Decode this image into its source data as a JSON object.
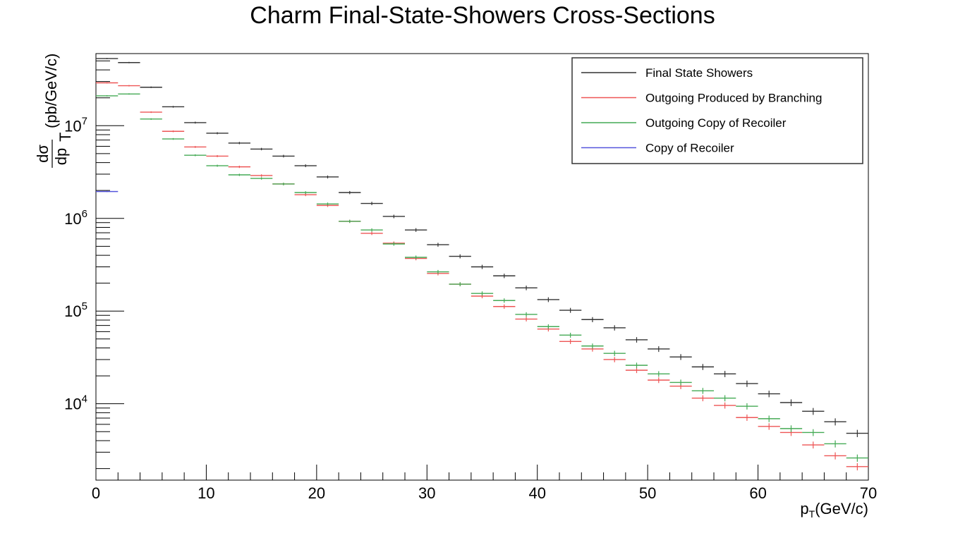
{
  "chart_data": {
    "type": "histogram",
    "title": "Charm Final-State-Showers Cross-Sections",
    "xlabel": "p_T(GeV/c)",
    "ylabel": "dσ/dp_T (pb/GeV/c)",
    "xlim": [
      0,
      70
    ],
    "ylim": [
      1500,
      60000000
    ],
    "yscale": "log",
    "bin_width": 2,
    "bin_edges_start": 0,
    "x_tick_labels": [
      "0",
      "10",
      "20",
      "30",
      "40",
      "50",
      "60",
      "70"
    ],
    "y_tick_labels": [
      {
        "value": 10000,
        "label": "10",
        "exp": "4"
      },
      {
        "value": 100000,
        "label": "10",
        "exp": "5"
      },
      {
        "value": 1000000,
        "label": "10",
        "exp": "6"
      },
      {
        "value": 10000000,
        "label": "10",
        "exp": "7"
      }
    ],
    "legend_position": "top-right",
    "series": [
      {
        "name": "Final State Showers",
        "color": "#333333",
        "values": [
          53000000,
          48000000,
          26000000,
          16000000,
          10800000,
          8300000,
          6500000,
          5600000,
          4700000,
          3700000,
          2800000,
          1900000,
          1450000,
          1050000,
          750000,
          520000,
          390000,
          300000,
          240000,
          178000,
          133000,
          102000,
          81000,
          66000,
          49000,
          39000,
          32000,
          25000,
          21000,
          16500,
          12800,
          10300,
          8300,
          6400,
          4800
        ]
      },
      {
        "name": "Outgoing Produced by Branching",
        "color": "#ee5555",
        "values": [
          29000000,
          27000000,
          14000000,
          8700000,
          5900000,
          4700000,
          3600000,
          2900000,
          2350000,
          1800000,
          1380000,
          930000,
          690000,
          540000,
          370000,
          255000,
          195000,
          145000,
          112000,
          82000,
          64000,
          47000,
          39000,
          30000,
          23000,
          18000,
          15500,
          11500,
          9600,
          7100,
          5700,
          4900,
          3600,
          2750,
          2100
        ]
      },
      {
        "name": "Outgoing Copy of Recoiler",
        "color": "#44aa55",
        "values": [
          21000000,
          22000000,
          11800000,
          7200000,
          4800000,
          3700000,
          2950000,
          2700000,
          2350000,
          1900000,
          1430000,
          930000,
          750000,
          530000,
          380000,
          265000,
          195000,
          155000,
          130000,
          92000,
          68000,
          55000,
          42000,
          35000,
          26000,
          21000,
          17000,
          13800,
          11500,
          9400,
          6900,
          5400,
          4900,
          3700,
          2600
        ]
      },
      {
        "name": "Copy of Recoiler",
        "color": "#5555dd",
        "values": [
          1950000
        ]
      }
    ]
  }
}
